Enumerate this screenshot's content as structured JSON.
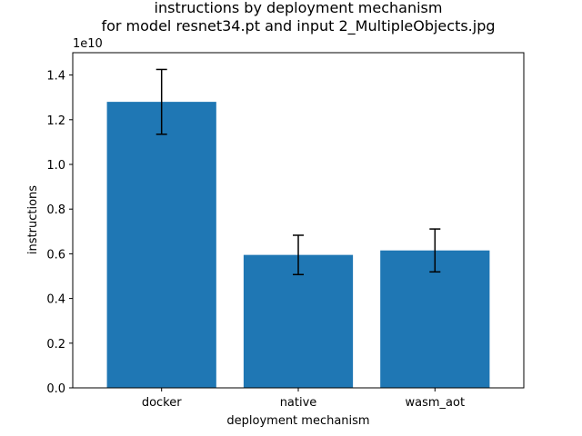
{
  "chart_data": {
    "type": "bar",
    "title_line1": "instructions by deployment mechanism",
    "title_line2": "for model resnet34.pt and input 2_MultipleObjects.jpg",
    "xlabel": "deployment mechanism",
    "ylabel": "instructions",
    "y_scale_label": "1e10",
    "y_scale": 10000000000,
    "categories": [
      "docker",
      "native",
      "wasm_aot"
    ],
    "values": [
      12800000000,
      5950000000,
      6150000000
    ],
    "errors": [
      1450000000,
      880000000,
      960000000
    ],
    "ylim": [
      0,
      15000000000
    ],
    "yticks": [
      0,
      2000000000,
      4000000000,
      6000000000,
      8000000000,
      10000000000,
      12000000000,
      14000000000
    ],
    "ytick_labels": [
      "0.0",
      "0.2",
      "0.4",
      "0.6",
      "0.8",
      "1.0",
      "1.2",
      "1.4"
    ],
    "bar_color": "#1f77b4",
    "error_color": "#000000",
    "grid": false,
    "legend": false
  }
}
